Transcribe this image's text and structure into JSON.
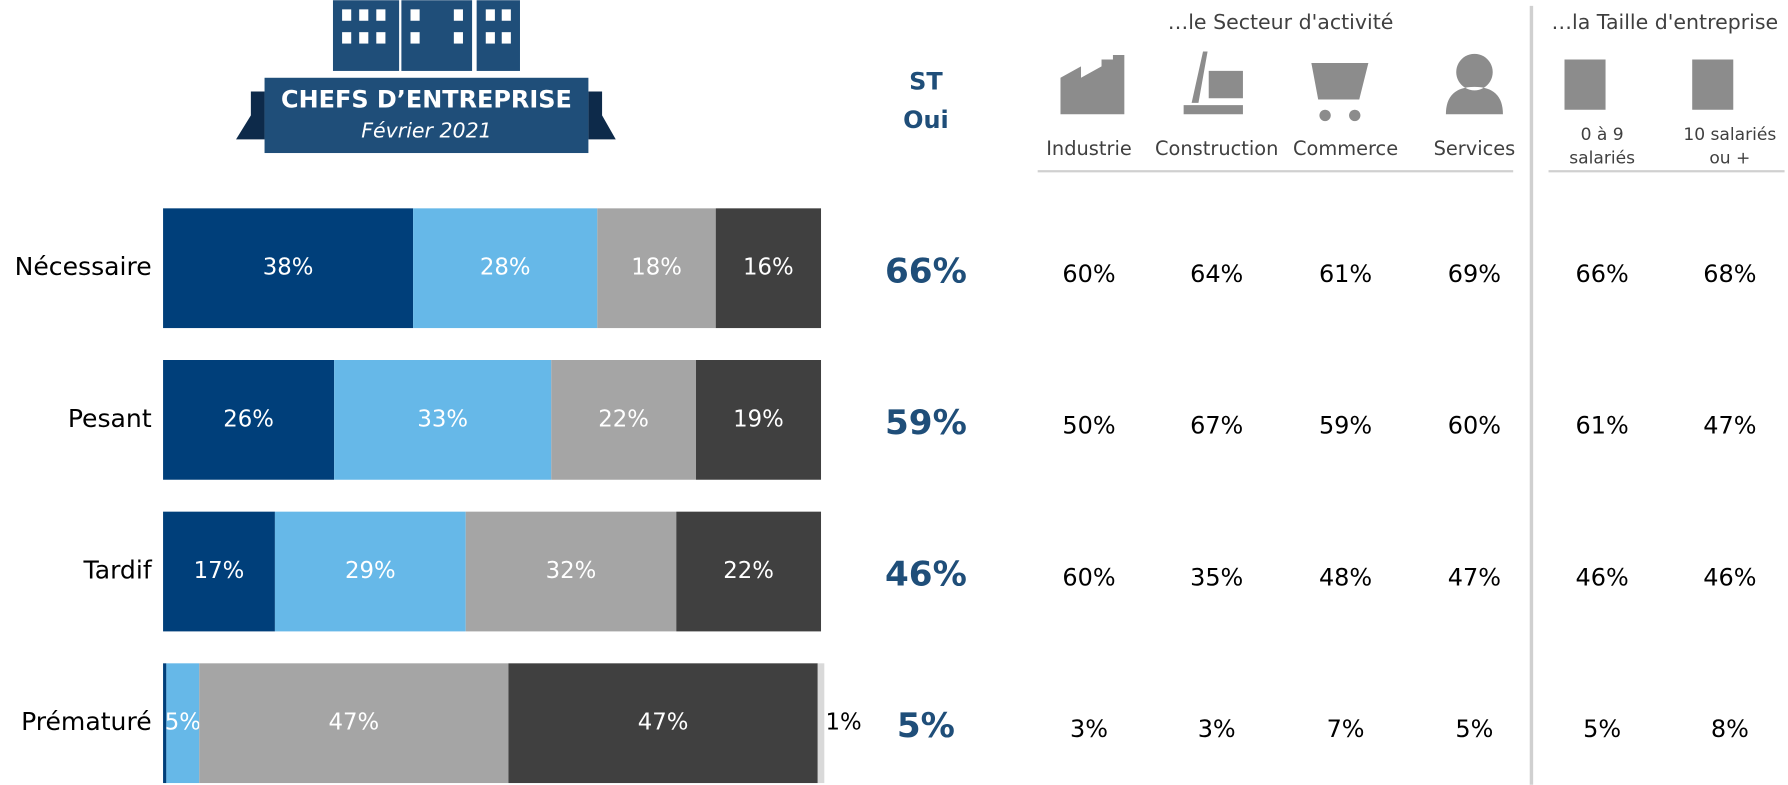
{
  "header": {
    "title": "CHEFS D’ENTREPRISE",
    "subtitle": "Février 2021"
  },
  "chart_data": {
    "type": "stacked-bar",
    "orientation": "horizontal",
    "categories": [
      "Nécessaire",
      "Pesant",
      "Tardif",
      "Prématuré"
    ],
    "xlim": [
      0,
      100
    ],
    "series": [
      {
        "color": "#003f7a",
        "values": [
          38,
          26,
          17,
          0.5
        ],
        "value_labels": [
          "38%",
          "26%",
          "17%",
          null
        ]
      },
      {
        "color": "#66b8e8",
        "values": [
          28,
          33,
          29,
          5
        ],
        "value_labels": [
          "28%",
          "33%",
          "29%",
          "5%"
        ]
      },
      {
        "color": "#a5a5a5",
        "values": [
          18,
          22,
          32,
          47
        ],
        "value_labels": [
          "18%",
          "22%",
          "32%",
          "47%"
        ]
      },
      {
        "color": "#404040",
        "values": [
          16,
          19,
          22,
          47
        ],
        "value_labels": [
          "16%",
          "19%",
          "22%",
          "47%"
        ]
      },
      {
        "color": "#d9d9d9",
        "values": [
          null,
          null,
          null,
          1
        ],
        "value_labels": [
          null,
          null,
          null,
          "1%"
        ]
      }
    ]
  },
  "table": {
    "total_header": [
      "ST",
      "Oui"
    ],
    "groups": [
      {
        "label": "…le Secteur d'activité",
        "columns": [
          [
            "Industrie"
          ],
          [
            "Construction"
          ],
          [
            "Commerce"
          ],
          [
            "Services"
          ]
        ]
      },
      {
        "label": "…la Taille d'entreprise",
        "columns": [
          [
            "0 à 9",
            "salariés"
          ],
          [
            "10 salariés",
            "ou +"
          ]
        ]
      }
    ],
    "total": [
      "66%",
      "59%",
      "46%",
      "5%"
    ],
    "rows": [
      [
        "60%",
        "64%",
        "61%",
        "69%",
        "66%",
        "68%"
      ],
      [
        "50%",
        "67%",
        "59%",
        "60%",
        "61%",
        "47%"
      ],
      [
        "60%",
        "35%",
        "48%",
        "47%",
        "46%",
        "46%"
      ],
      [
        "3%",
        "3%",
        "7%",
        "5%",
        "5%",
        "8%"
      ]
    ]
  }
}
